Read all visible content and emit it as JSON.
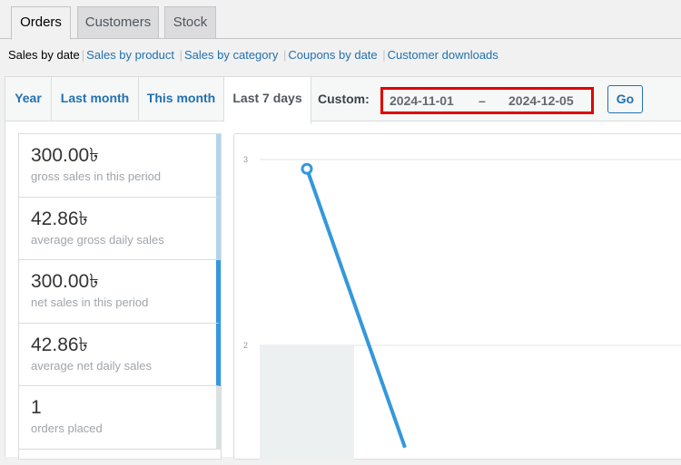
{
  "tabs": [
    "Orders",
    "Customers",
    "Stock"
  ],
  "subnav": [
    "Sales by date",
    "Sales by product",
    "Sales by category",
    "Coupons by date",
    "Customer downloads"
  ],
  "ranges": [
    "Year",
    "Last month",
    "This month",
    "Last 7 days"
  ],
  "custom": {
    "label": "Custom:",
    "from": "2024-11-01",
    "dash": "–",
    "to": "2024-12-05",
    "go": "Go"
  },
  "stats": [
    {
      "value": "300.00৳",
      "label": "gross sales in this period",
      "color": "#b1d4ea"
    },
    {
      "value": "42.86৳",
      "label": "average gross daily sales",
      "color": "#b1d4ea"
    },
    {
      "value": "300.00৳",
      "label": "net sales in this period",
      "color": "#3498db"
    },
    {
      "value": "42.86৳",
      "label": "average net daily sales",
      "color": "#3498db"
    },
    {
      "value": "1",
      "label": "orders placed",
      "color": "#dbe1e3"
    }
  ],
  "chart_data": {
    "type": "bar",
    "yticks": [
      "3",
      "2"
    ],
    "series": [
      {
        "type": "bar",
        "values": [
          2
        ],
        "color": "#ecf0f1"
      },
      {
        "type": "line",
        "values": [
          2.95,
          1.45
        ],
        "color": "#3498db"
      }
    ],
    "grid": true
  }
}
